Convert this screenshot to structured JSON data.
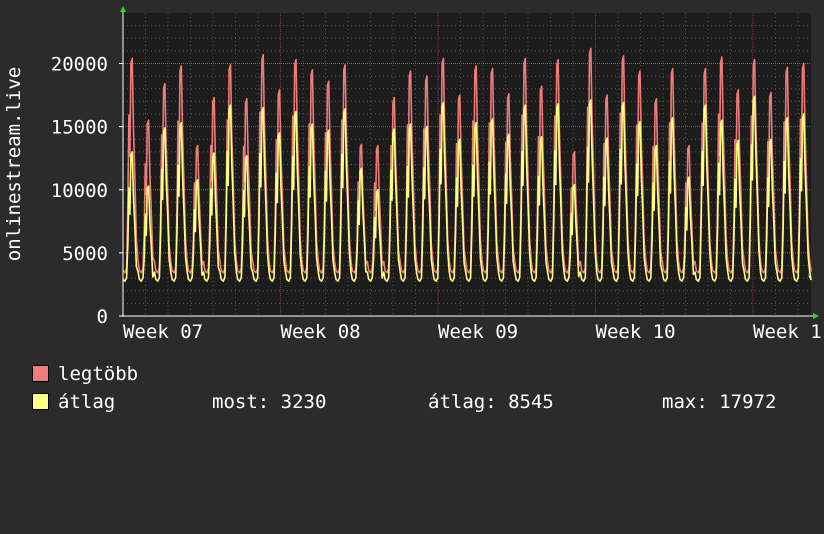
{
  "chart_data": {
    "type": "line",
    "ylabel": "onlinestream.live",
    "ylim": [
      0,
      24000
    ],
    "yticks": [
      0,
      5000,
      10000,
      15000,
      20000
    ],
    "ytick_labels": [
      "0",
      "5000",
      "10000",
      "15000",
      "20000"
    ],
    "xticks": [
      "Week 07",
      "Week 08",
      "Week 09",
      "Week 10",
      "Week 1"
    ],
    "grid": true,
    "legend_position": "bottom-left",
    "series": [
      {
        "name": "legtöbb",
        "color": "#f07b7b",
        "daily_peaks": [
          20400,
          15500,
          18400,
          19800,
          13500,
          17300,
          19900,
          17200,
          20700,
          17900,
          20300,
          19500,
          18600,
          19900,
          13600,
          13500,
          17300,
          19400,
          19000,
          20400,
          17500,
          19800,
          19600,
          17600,
          20400,
          18200,
          20300,
          13000,
          21200,
          17500,
          20600,
          19400,
          17200,
          19600,
          13500,
          19600,
          20500,
          17900,
          20300,
          17700,
          19700,
          20000
        ]
      },
      {
        "name": "átlag",
        "color": "#ffff80",
        "daily_peaks": [
          13000,
          10300,
          14900,
          15300,
          10800,
          12900,
          16700,
          12700,
          16500,
          14500,
          16200,
          15200,
          14700,
          16400,
          11700,
          10000,
          14800,
          15200,
          15000,
          16900,
          14000,
          15300,
          15600,
          14400,
          16700,
          14200,
          16800,
          10400,
          17100,
          14100,
          16900,
          15400,
          13500,
          15700,
          11000,
          16700,
          15500,
          13900,
          17400,
          14000,
          15700,
          16000
        ]
      }
    ]
  },
  "legend": {
    "max_label": "legtöbb",
    "avg_label": "átlag",
    "now": "most: 3230",
    "avg": "átlag: 8545",
    "max": "max: 17972"
  },
  "colors": {
    "background": "#2b2b2b",
    "plot_bg": "#1c1c1c",
    "grid": "#585858",
    "axis": "#ffffff",
    "arrow": "#22dd22",
    "vgrid_major": "#7a3b3b"
  }
}
